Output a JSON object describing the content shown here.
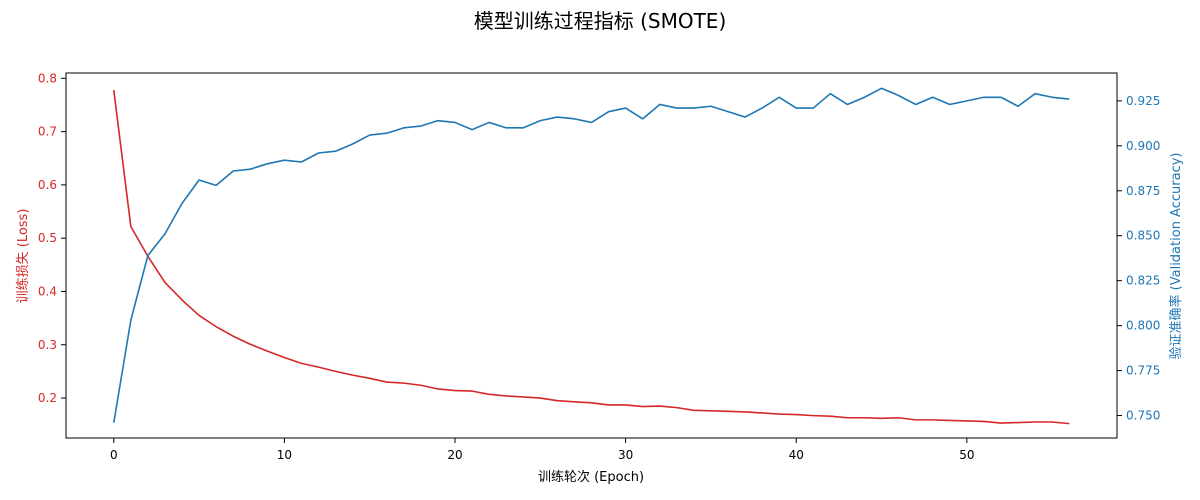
{
  "chart_data": {
    "type": "line",
    "title": "模型训练过程指标 (SMOTE)",
    "xlabel": "训练轮次 (Epoch)",
    "ylabel_left": "训练损失 (Loss)",
    "ylabel_right": "验证准确率 (Validation Accuracy)",
    "xlim": [
      -2.8,
      58.8
    ],
    "ylim_left": [
      0.125,
      0.81
    ],
    "ylim_right": [
      0.7375,
      0.9405
    ],
    "x_ticks": [
      0,
      10,
      20,
      30,
      40,
      50
    ],
    "y_ticks_left": [
      0.2,
      0.3,
      0.4,
      0.5,
      0.6,
      0.7,
      0.8
    ],
    "y_ticks_right": [
      0.75,
      0.775,
      0.8,
      0.825,
      0.85,
      0.875,
      0.9,
      0.925
    ],
    "y_tick_labels_left": [
      "0.2",
      "0.3",
      "0.4",
      "0.5",
      "0.6",
      "0.7",
      "0.8"
    ],
    "y_tick_labels_right": [
      "0.750",
      "0.775",
      "0.800",
      "0.825",
      "0.850",
      "0.875",
      "0.900",
      "0.925"
    ],
    "grid": false,
    "colors": {
      "loss": "#d62728",
      "accuracy": "#1f77b4"
    },
    "x": [
      0,
      1,
      2,
      3,
      4,
      5,
      6,
      7,
      8,
      9,
      10,
      11,
      12,
      13,
      14,
      15,
      16,
      17,
      18,
      19,
      20,
      21,
      22,
      23,
      24,
      25,
      26,
      27,
      28,
      29,
      30,
      31,
      32,
      33,
      34,
      35,
      36,
      37,
      38,
      39,
      40,
      41,
      42,
      43,
      44,
      45,
      46,
      47,
      48,
      49,
      50,
      51,
      52,
      53,
      54,
      55,
      56
    ],
    "series": [
      {
        "key": "loss",
        "axis": "left",
        "values": [
          0.778,
          0.522,
          0.466,
          0.417,
          0.384,
          0.355,
          0.334,
          0.316,
          0.301,
          0.288,
          0.276,
          0.265,
          0.258,
          0.25,
          0.243,
          0.237,
          0.23,
          0.228,
          0.224,
          0.217,
          0.214,
          0.213,
          0.207,
          0.204,
          0.202,
          0.2,
          0.195,
          0.193,
          0.191,
          0.187,
          0.187,
          0.184,
          0.185,
          0.182,
          0.177,
          0.176,
          0.175,
          0.174,
          0.172,
          0.17,
          0.169,
          0.167,
          0.166,
          0.163,
          0.163,
          0.162,
          0.163,
          0.159,
          0.159,
          0.158,
          0.157,
          0.156,
          0.153,
          0.154,
          0.155,
          0.155,
          0.152
        ]
      },
      {
        "key": "accuracy",
        "axis": "right",
        "values": [
          0.746,
          0.803,
          0.839,
          0.851,
          0.868,
          0.881,
          0.878,
          0.886,
          0.887,
          0.89,
          0.892,
          0.891,
          0.896,
          0.897,
          0.901,
          0.906,
          0.907,
          0.91,
          0.911,
          0.914,
          0.913,
          0.909,
          0.913,
          0.91,
          0.91,
          0.914,
          0.916,
          0.915,
          0.913,
          0.919,
          0.921,
          0.915,
          0.923,
          0.921,
          0.921,
          0.922,
          0.919,
          0.916,
          0.921,
          0.927,
          0.921,
          0.921,
          0.929,
          0.923,
          0.927,
          0.932,
          0.928,
          0.923,
          0.927,
          0.923,
          0.925,
          0.927,
          0.927,
          0.922,
          0.929,
          0.927,
          0.926
        ]
      }
    ]
  }
}
